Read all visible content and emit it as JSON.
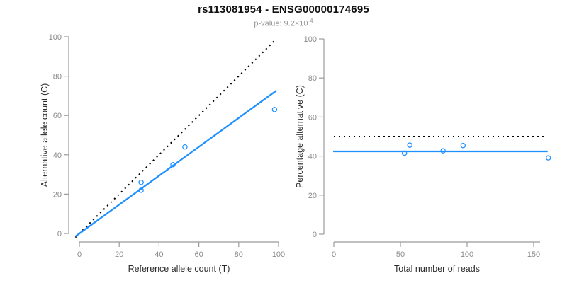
{
  "page": {
    "title": "rs113081954 - ENSG00000174695",
    "subtitle": {
      "prefix": "p-value: 9.2×10",
      "exponent": "-4"
    }
  },
  "colors": {
    "accent_blue": "#1E90FF",
    "line_black": "#000000",
    "axis_line_gray": "#9b9b9b",
    "tick_label_gray": "#8a8a8a",
    "axis_title_dark": "#2b2b2b"
  },
  "chart_data": [
    {
      "type": "scatter",
      "name": "allele-counts-panel",
      "title": "",
      "xlabel": "Reference allele count (T)",
      "ylabel": "Alternative allele count (C)",
      "xlim": [
        0,
        100
      ],
      "ylim": [
        0,
        100
      ],
      "xticks": [
        0,
        20,
        40,
        60,
        80,
        100
      ],
      "yticks": [
        0,
        20,
        40,
        60,
        80,
        100
      ],
      "grid": false,
      "legend": false,
      "points": [
        [
          31,
          26
        ],
        [
          31,
          22
        ],
        [
          47,
          35
        ],
        [
          53,
          44
        ],
        [
          98,
          63
        ]
      ],
      "lines": [
        {
          "name": "identity-line",
          "style": "dotted",
          "color": "#000000",
          "x1": -2,
          "y1": -2,
          "x2": 98,
          "y2": 98
        },
        {
          "name": "fit-line",
          "style": "solid",
          "color": "#1E90FF",
          "x1": -2,
          "y1": -1.5,
          "x2": 99,
          "y2": 72.7
        }
      ]
    },
    {
      "type": "scatter",
      "name": "percentage-panel",
      "title": "",
      "xlabel": "Total number of reads",
      "ylabel": "Percentage alternative (C)",
      "xlim": [
        0,
        150
      ],
      "ylim": [
        0,
        100
      ],
      "xticks": [
        0,
        50,
        100,
        150
      ],
      "yticks": [
        0,
        20,
        40,
        60,
        80,
        100
      ],
      "grid": false,
      "legend": false,
      "points": [
        [
          53,
          41.5
        ],
        [
          57,
          45.6
        ],
        [
          82,
          42.7
        ],
        [
          97,
          45.4
        ],
        [
          161,
          39.1
        ]
      ],
      "lines": [
        {
          "name": "fifty-percent-line",
          "style": "dotted",
          "color": "#000000",
          "x1": 0,
          "y1": 50,
          "x2": 159,
          "y2": 50
        },
        {
          "name": "mean-percentage-line",
          "style": "solid",
          "color": "#1E90FF",
          "x1": -0.5,
          "y1": 42.4,
          "x2": 160.5,
          "y2": 42.4
        }
      ]
    }
  ]
}
